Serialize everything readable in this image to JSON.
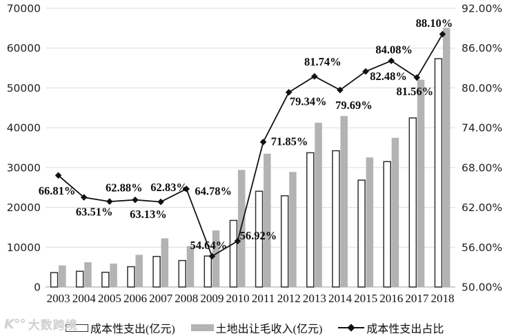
{
  "chart_data": {
    "type": "combo",
    "categories": [
      "2003",
      "2004",
      "2005",
      "2006",
      "2007",
      "2008",
      "2009",
      "2010",
      "2011",
      "2012",
      "2013",
      "2014",
      "2015",
      "2016",
      "2017",
      "2018"
    ],
    "series": [
      {
        "name": "成本性支出(亿元)",
        "type": "bar",
        "style": "outline",
        "values": [
          3620,
          3950,
          3700,
          5100,
          7680,
          6650,
          7780,
          16730,
          24050,
          22920,
          33720,
          34220,
          26840,
          31490,
          42460,
          57350
        ]
      },
      {
        "name": "土地出让毛收入(亿元)",
        "type": "bar",
        "style": "solid",
        "values": [
          5420,
          6220,
          5880,
          8080,
          12220,
          10280,
          14240,
          29400,
          33480,
          28890,
          41250,
          42940,
          32550,
          37460,
          52060,
          65100
        ]
      },
      {
        "name": "成本性支出占比",
        "type": "line",
        "marker": "diamond",
        "values": [
          66.81,
          63.51,
          62.88,
          63.13,
          62.83,
          64.78,
          54.64,
          56.92,
          71.85,
          79.34,
          81.74,
          79.69,
          82.48,
          84.08,
          81.56,
          88.1
        ],
        "labels": [
          "66.81%",
          "63.51%",
          "62.88%",
          "63.13%",
          "62.83%",
          "64.78%",
          "54.64%",
          "56.92%",
          "71.85%",
          "79.34%",
          "81.74%",
          "79.69%",
          "82.48%",
          "84.08%",
          "81.56%",
          "88.10%"
        ],
        "label_offsets": [
          [
            -2,
            22
          ],
          [
            15,
            21
          ],
          [
            21,
            -20
          ],
          [
            19,
            21
          ],
          [
            12,
            -21
          ],
          [
            39,
            3
          ],
          [
            -5,
            -16
          ],
          [
            30,
            -8
          ],
          [
            38,
            -1
          ],
          [
            28,
            13
          ],
          [
            12,
            -21
          ],
          [
            20,
            22
          ],
          [
            33,
            7
          ],
          [
            4,
            -16
          ],
          [
            -3,
            20
          ],
          [
            -12,
            -16
          ]
        ]
      }
    ],
    "left_axis": {
      "min": 0,
      "max": 70000,
      "step": 10000,
      "ticks": [
        "0",
        "10000",
        "20000",
        "30000",
        "40000",
        "50000",
        "60000",
        "70000"
      ]
    },
    "right_axis": {
      "min": 50,
      "max": 92,
      "step": 6,
      "ticks": [
        "50.00%",
        "56.00%",
        "62.00%",
        "68.00%",
        "74.00%",
        "80.00%",
        "86.00%",
        "92.00%"
      ]
    },
    "grid": true,
    "legend_position": "bottom"
  },
  "colors": {
    "bar_outline_fill": "#ffffff",
    "bar_outline_stroke": "#2e2e2e",
    "bar_solid_fill": "#b3b3b3",
    "line": "#111111",
    "gridline": "#dbdbdb",
    "axis_line": "#b5b5b5",
    "text": "#111111",
    "watermark": "#d2d2d2"
  },
  "watermark": {
    "logo": "K°°",
    "text": "大数跨境"
  }
}
